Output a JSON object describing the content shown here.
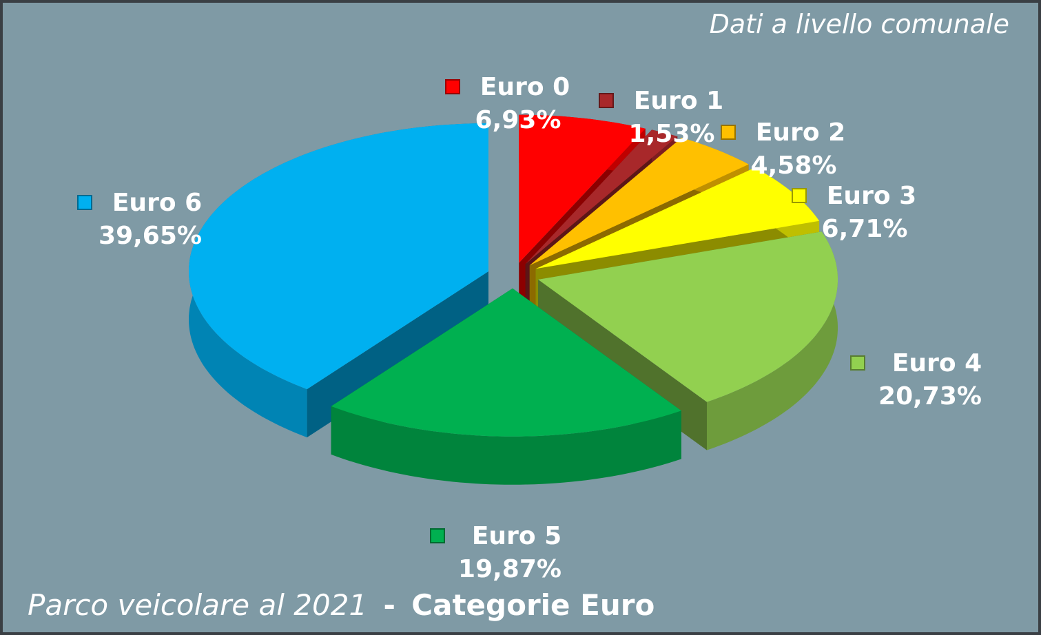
{
  "chart_data": {
    "type": "pie3d",
    "title": [
      "Parco veicolare al 2021",
      "-",
      "Categorie Euro"
    ],
    "annotation": "Dati a livello comunale",
    "categories": [
      "Euro 0",
      "Euro 1",
      "Euro 2",
      "Euro 3",
      "Euro 4",
      "Euro 5",
      "Euro 6"
    ],
    "values": [
      6.93,
      1.53,
      4.58,
      6.71,
      20.73,
      19.87,
      39.65
    ],
    "value_labels": [
      "6,93%",
      "1,53%",
      "4,58%",
      "6,71%",
      "20,73%",
      "19,87%",
      "39,65%"
    ],
    "colors": [
      "#ff0000",
      "#a8282a",
      "#ffc000",
      "#ffff00",
      "#92d050",
      "#00b050",
      "#00b0f0"
    ]
  }
}
